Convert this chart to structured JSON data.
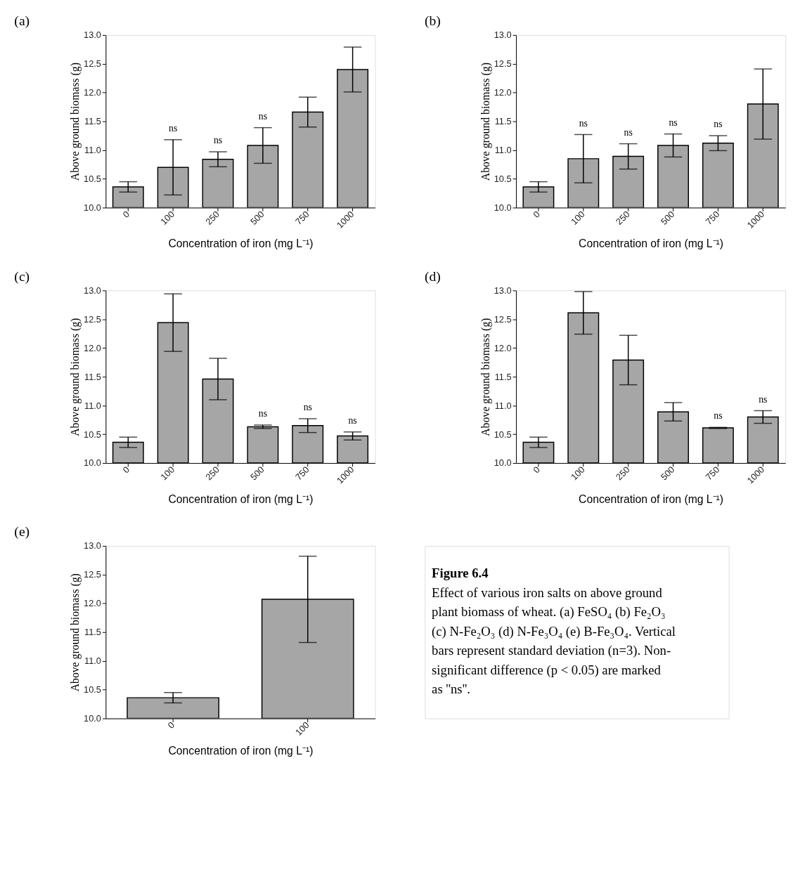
{
  "chart_data": [
    {
      "type": "bar",
      "title": "(a)",
      "xlabel": "Concentration of iron (mg L⁻¹)",
      "ylabel": "Above ground biomass (g)",
      "categories": [
        "0",
        "100",
        "250",
        "500",
        "750",
        "1000"
      ],
      "values": [
        10.36,
        10.7,
        10.84,
        11.08,
        11.66,
        12.4
      ],
      "errors": [
        0.09,
        0.48,
        0.13,
        0.31,
        0.26,
        0.39
      ],
      "color": "#a6a6a6",
      "ylim": [
        10.0,
        13.0
      ],
      "yticks": [
        {
          "value": 10,
          "label": "10.0"
        },
        {
          "value": 10.5,
          "label": "10.5"
        },
        {
          "value": 11,
          "label": "11.0"
        },
        {
          "value": 11.5,
          "label": "11.5"
        },
        {
          "value": 12,
          "label": "12.0"
        },
        {
          "value": 12.5,
          "label": "12.5"
        },
        {
          "value": 13,
          "label": "13.0"
        }
      ],
      "annotations": [
        {
          "text": "ns",
          "x": "100",
          "y": 11.18
        },
        {
          "text": "ns",
          "x": "250",
          "y": 10.97
        },
        {
          "text": "ns",
          "x": "500",
          "y": 11.39
        }
      ]
    },
    {
      "type": "bar",
      "title": "(b)",
      "xlabel": "Concentration of iron (mg L⁻¹)",
      "ylabel": "Above ground biomass (g)",
      "categories": [
        "0",
        "100",
        "250",
        "500",
        "750",
        "1000"
      ],
      "values": [
        10.36,
        10.85,
        10.89,
        11.08,
        11.12,
        11.8
      ],
      "errors": [
        0.09,
        0.42,
        0.22,
        0.2,
        0.13,
        0.61
      ],
      "color": "#a6a6a6",
      "ylim": [
        10.0,
        13.0
      ],
      "yticks": [
        {
          "value": 10,
          "label": "10.0"
        },
        {
          "value": 10.5,
          "label": "10.5"
        },
        {
          "value": 11,
          "label": "11.0"
        },
        {
          "value": 11.5,
          "label": "11.5"
        },
        {
          "value": 12,
          "label": "12.0"
        },
        {
          "value": 12.5,
          "label": "12.5"
        },
        {
          "value": 13,
          "label": "13.0"
        }
      ],
      "annotations": [
        {
          "text": "ns",
          "x": "100",
          "y": 11.27
        },
        {
          "text": "ns",
          "x": "250",
          "y": 11.11
        },
        {
          "text": "ns",
          "x": "500",
          "y": 11.28
        },
        {
          "text": "ns",
          "x": "750",
          "y": 11.25
        }
      ]
    },
    {
      "type": "bar",
      "title": "(c)",
      "xlabel": "Concentration of iron (mg L⁻¹)",
      "ylabel": "Above ground biomass (g)",
      "categories": [
        "0",
        "100",
        "250",
        "500",
        "750",
        "1000"
      ],
      "values": [
        10.36,
        12.44,
        11.46,
        10.63,
        10.65,
        10.47
      ],
      "errors": [
        0.09,
        0.5,
        0.36,
        0.03,
        0.12,
        0.07
      ],
      "color": "#a6a6a6",
      "ylim": [
        10.0,
        13.0
      ],
      "yticks": [
        {
          "value": 10,
          "label": "10.0"
        },
        {
          "value": 10.5,
          "label": "10.5"
        },
        {
          "value": 11,
          "label": "11.0"
        },
        {
          "value": 11.5,
          "label": "11.5"
        },
        {
          "value": 12,
          "label": "12.0"
        },
        {
          "value": 12.5,
          "label": "12.5"
        },
        {
          "value": 13,
          "label": "13.0"
        }
      ],
      "annotations": [
        {
          "text": "ns",
          "x": "500",
          "y": 10.66
        },
        {
          "text": "ns",
          "x": "750",
          "y": 10.77
        },
        {
          "text": "ns",
          "x": "1000",
          "y": 10.54
        }
      ]
    },
    {
      "type": "bar",
      "title": "(d)",
      "xlabel": "Concentration of iron (mg L⁻¹)",
      "ylabel": "Above ground biomass (g)",
      "categories": [
        "0",
        "100",
        "250",
        "500",
        "750",
        "1000"
      ],
      "values": [
        10.36,
        12.61,
        11.79,
        10.89,
        10.61,
        10.8
      ],
      "errors": [
        0.09,
        0.37,
        0.43,
        0.16,
        0.01,
        0.11
      ],
      "color": "#a6a6a6",
      "ylim": [
        10.0,
        13.0
      ],
      "yticks": [
        {
          "value": 10,
          "label": "10.0"
        },
        {
          "value": 10.5,
          "label": "10.5"
        },
        {
          "value": 11,
          "label": "11.0"
        },
        {
          "value": 11.5,
          "label": "11.5"
        },
        {
          "value": 12,
          "label": "12.0"
        },
        {
          "value": 12.5,
          "label": "12.5"
        },
        {
          "value": 13,
          "label": "13.0"
        }
      ],
      "annotations": [
        {
          "text": "ns",
          "x": "750",
          "y": 10.62
        },
        {
          "text": "ns",
          "x": "1000",
          "y": 10.91
        }
      ]
    },
    {
      "type": "bar",
      "title": "(e)",
      "xlabel": "Concentration of iron (mg L⁻¹)",
      "ylabel": "Above ground biomass (g)",
      "categories": [
        "0",
        "100"
      ],
      "values": [
        10.36,
        12.07
      ],
      "errors": [
        0.09,
        0.75
      ],
      "color": "#a6a6a6",
      "ylim": [
        10.0,
        13.0
      ],
      "yticks": [
        {
          "value": 10,
          "label": "10.0"
        },
        {
          "value": 10.5,
          "label": "10.5"
        },
        {
          "value": 11,
          "label": "11.0"
        },
        {
          "value": 11.5,
          "label": "11.5"
        },
        {
          "value": 12,
          "label": "12.0"
        },
        {
          "value": 12.5,
          "label": "12.5"
        },
        {
          "value": 13,
          "label": "13.0"
        }
      ],
      "annotations": [
        "Figure 6.4",
        "Effect of various iron salts on above ground plant biomass of wheat. (a) FeSO₄ (b) Fe₂O₃ (c) N-Fe₂O₃ (d) N-Fe₃O₄ (e) B-Fe₃O₄. Vertical bars represent standard deviation (n=3). Non-significant difference (p < 0.05) are marked as ''ns''."
      ]
    }
  ]
}
